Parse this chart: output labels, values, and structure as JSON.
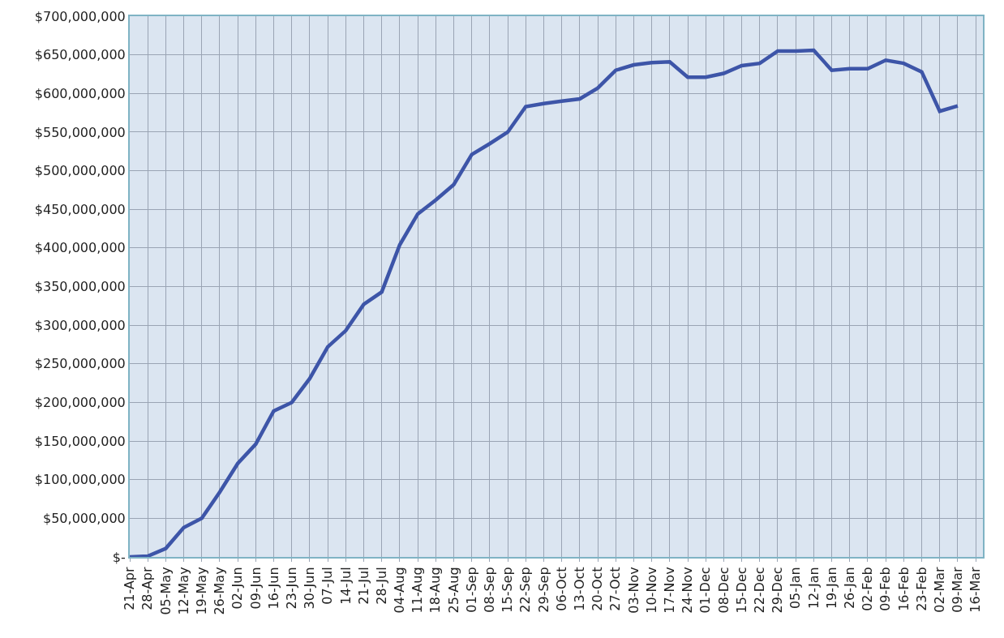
{
  "chart_data": {
    "type": "line",
    "grid": true,
    "marker": "none",
    "line_style": "solid",
    "categories": [
      "21-Apr",
      "28-Apr",
      "05-May",
      "12-May",
      "19-May",
      "26-May",
      "02-Jun",
      "09-Jun",
      "16-Jun",
      "23-Jun",
      "30-Jun",
      "07-Jul",
      "14-Jul",
      "21-Jul",
      "28-Jul",
      "04-Aug",
      "11-Aug",
      "18-Aug",
      "25-Aug",
      "01-Sep",
      "08-Sep",
      "15-Sep",
      "22-Sep",
      "29-Sep",
      "06-Oct",
      "13-Oct",
      "20-Oct",
      "27-Oct",
      "03-Nov",
      "10-Nov",
      "17-Nov",
      "24-Nov",
      "01-Dec",
      "08-Dec",
      "15-Dec",
      "22-Dec",
      "29-Dec",
      "05-Jan",
      "12-Jan",
      "19-Jan",
      "26-Jan",
      "02-Feb",
      "09-Feb",
      "16-Feb",
      "23-Feb",
      "02-Mar",
      "09-Mar",
      "16-Mar"
    ],
    "series": [
      {
        "color": "#3d55a8",
        "values": [
          0,
          1000000,
          11000000,
          38000000,
          50000000,
          84000000,
          121000000,
          146000000,
          189000000,
          200000000,
          231000000,
          272000000,
          293000000,
          327000000,
          343000000,
          404000000,
          444000000,
          462000000,
          482000000,
          521000000,
          535000000,
          550000000,
          583000000,
          587000000,
          590000000,
          593000000,
          607000000,
          630000000,
          637000000,
          640000000,
          641000000,
          621000000,
          621000000,
          626000000,
          636000000,
          639000000,
          655000000,
          655000000,
          656000000,
          630000000,
          632000000,
          632000000,
          643000000,
          639000000,
          628000000,
          577000000,
          584000000,
          null
        ]
      }
    ],
    "ylim": [
      0,
      700000000
    ],
    "yticks": [
      {
        "value": 0,
        "label": "$-"
      },
      {
        "value": 50000000,
        "label": "$50,000,000"
      },
      {
        "value": 100000000,
        "label": "$100,000,000"
      },
      {
        "value": 150000000,
        "label": "$150,000,000"
      },
      {
        "value": 200000000,
        "label": "$200,000,000"
      },
      {
        "value": 250000000,
        "label": "$250,000,000"
      },
      {
        "value": 300000000,
        "label": "$300,000,000"
      },
      {
        "value": 350000000,
        "label": "$350,000,000"
      },
      {
        "value": 400000000,
        "label": "$400,000,000"
      },
      {
        "value": 450000000,
        "label": "$450,000,000"
      },
      {
        "value": 500000000,
        "label": "$500,000,000"
      },
      {
        "value": 550000000,
        "label": "$550,000,000"
      },
      {
        "value": 600000000,
        "label": "$600,000,000"
      },
      {
        "value": 650000000,
        "label": "$650,000,000"
      },
      {
        "value": 700000000,
        "label": "$700,000,000"
      }
    ]
  }
}
